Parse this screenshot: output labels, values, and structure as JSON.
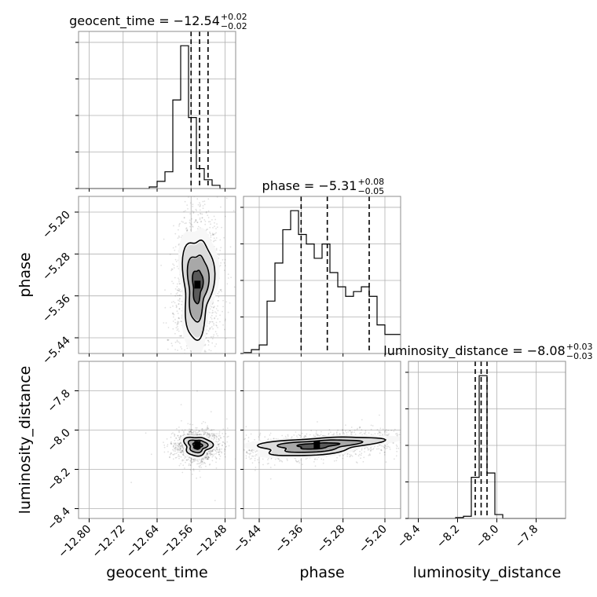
{
  "chart_data": {
    "type": "corner",
    "parameters": [
      "geocent_time",
      "phase",
      "luminosity_distance"
    ],
    "titles": [
      {
        "param": "geocent_time",
        "lead": "geocent_time = −12.54",
        "sup": "+0.02",
        "sub": "−0.02"
      },
      {
        "param": "phase",
        "lead": "phase = −5.31",
        "sup": "+0.08",
        "sub": "−0.05"
      },
      {
        "param": "luminosity_distance",
        "lead": "luminosity_distance = −8.08",
        "sup": "+0.03",
        "sub": "−0.03"
      }
    ],
    "axis_labels": {
      "x": [
        "geocent_time",
        "phase",
        "luminosity_distance"
      ],
      "y": [
        "phase",
        "luminosity_distance"
      ]
    },
    "ranges": {
      "geocent_time": [
        -12.825,
        -12.455
      ],
      "phase": [
        -5.47,
        -5.17
      ],
      "luminosity_distance": [
        -8.45,
        -7.65
      ]
    },
    "ticks": {
      "geocent_time": {
        "values": [
          -12.8,
          -12.72,
          -12.64,
          -12.56,
          -12.48
        ],
        "labels": [
          "−12.80",
          "−12.72",
          "−12.64",
          "−12.56",
          "−12.48"
        ]
      },
      "phase": {
        "values": [
          -5.44,
          -5.36,
          -5.28,
          -5.2
        ],
        "labels": [
          "−5.44",
          "−5.36",
          "−5.28",
          "−5.20"
        ]
      },
      "luminosity_distance": {
        "values": [
          -8.4,
          -8.2,
          -8.0,
          -7.8
        ],
        "labels": [
          "−8.4",
          "−8.2",
          "−8.0",
          "−7.8"
        ]
      }
    },
    "quantiles": {
      "geocent_time": [
        -12.56,
        -12.54,
        -12.52
      ],
      "phase": [
        -5.36,
        -5.31,
        -5.23
      ],
      "luminosity_distance": [
        -8.11,
        -8.08,
        -8.05
      ]
    },
    "histograms": {
      "geocent_time": {
        "edges": [
          -12.825,
          -12.8065,
          -12.788,
          -12.7695,
          -12.751,
          -12.7325,
          -12.714,
          -12.6955,
          -12.677,
          -12.6585,
          -12.64,
          -12.6215,
          -12.603,
          -12.5845,
          -12.566,
          -12.5475,
          -12.529,
          -12.5105,
          -12.492,
          -12.4735,
          -12.455
        ],
        "counts": [
          0,
          0,
          0,
          0,
          0,
          0,
          0,
          0,
          0,
          4,
          18,
          42,
          222,
          358,
          178,
          50,
          22,
          8,
          0,
          0
        ]
      },
      "phase": {
        "edges": [
          -5.47,
          -5.455,
          -5.44,
          -5.425,
          -5.41,
          -5.395,
          -5.38,
          -5.365,
          -5.35,
          -5.335,
          -5.32,
          -5.305,
          -5.29,
          -5.275,
          -5.26,
          -5.245,
          -5.23,
          -5.215,
          -5.2,
          -5.185,
          -5.17
        ],
        "counts": [
          2,
          8,
          18,
          110,
          190,
          260,
          300,
          250,
          230,
          200,
          230,
          170,
          140,
          120,
          130,
          140,
          120,
          60,
          40,
          40
        ]
      },
      "luminosity_distance": {
        "edges": [
          -8.45,
          -8.41,
          -8.37,
          -8.33,
          -8.29,
          -8.25,
          -8.21,
          -8.17,
          -8.13,
          -8.09,
          -8.05,
          -8.01,
          -7.97,
          -7.93,
          -7.89,
          -7.85,
          -7.81,
          -7.77,
          -7.73,
          -7.69,
          -7.65
        ],
        "counts": [
          0,
          0,
          0,
          0,
          0,
          0,
          2,
          5,
          95,
          330,
          105,
          9,
          0,
          0,
          0,
          0,
          0,
          0,
          0,
          0
        ]
      }
    },
    "pairs": [
      {
        "x": "geocent_time",
        "y": "phase",
        "center": [
          -12.545,
          -5.34
        ],
        "spread": [
          0.022,
          0.06
        ],
        "correlation": 0.1
      },
      {
        "x": "geocent_time",
        "y": "luminosity_distance",
        "center": [
          -12.545,
          -8.08
        ],
        "spread": [
          0.02,
          0.03
        ],
        "correlation": 0.0
      },
      {
        "x": "phase",
        "y": "luminosity_distance",
        "center": [
          -5.33,
          -8.08
        ],
        "spread": [
          0.07,
          0.03
        ],
        "correlation": 0.45
      }
    ],
    "grid": true,
    "levels_sigma": [
      0.5,
      1.0,
      1.5,
      2.0
    ]
  }
}
